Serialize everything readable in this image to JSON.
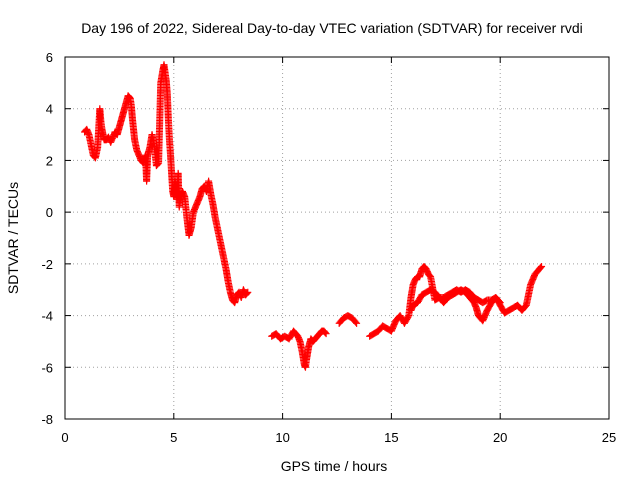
{
  "chart_data": {
    "type": "scatter",
    "title": "Day 196 of 2022, Sidereal Day-to-day VTEC variation (SDTVAR) for receiver rvdi",
    "xlabel": "GPS time / hours",
    "ylabel": "SDTVAR / TECUs",
    "xlim": [
      0,
      25
    ],
    "ylim": [
      -8,
      6
    ],
    "x_ticks": [
      0,
      5,
      10,
      15,
      20,
      25
    ],
    "y_ticks": [
      -8,
      -6,
      -4,
      -2,
      0,
      2,
      4,
      6
    ],
    "grid": true,
    "marker": "plus",
    "colors": {
      "series": "#ff0000",
      "grid": "#a0a0a0",
      "axes": "#000000"
    },
    "series": [
      {
        "segments": [
          {
            "x": [
              0.9,
              1.0,
              1.1,
              1.2,
              1.3,
              1.4,
              1.5,
              1.6,
              1.65,
              1.7,
              1.75,
              1.8,
              1.9,
              2.0,
              2.1,
              2.2,
              2.3,
              2.4,
              2.5,
              2.6,
              2.7,
              2.8,
              2.9,
              3.0,
              3.05,
              3.1,
              3.15,
              3.2,
              3.3,
              3.4,
              3.5,
              3.6,
              3.7,
              3.75,
              3.8,
              3.9,
              4.0,
              4.1,
              4.2,
              4.3,
              4.4,
              4.5,
              4.55,
              4.6,
              4.65,
              4.7,
              4.75,
              4.8,
              4.85,
              4.9,
              4.95,
              5.0,
              5.05,
              5.1,
              5.15,
              5.2,
              5.25,
              5.3,
              5.4,
              5.5,
              5.6,
              5.7,
              5.8,
              5.9,
              6.0,
              6.1,
              6.2,
              6.3,
              6.4,
              6.5,
              6.6,
              6.7,
              6.8,
              6.9,
              7.0,
              7.1,
              7.2,
              7.3,
              7.4,
              7.5,
              7.6,
              7.7,
              7.8,
              7.9,
              8.0,
              8.1,
              8.2,
              8.3,
              8.4
            ],
            "y": [
              3.1,
              3.2,
              3.0,
              2.6,
              2.2,
              2.1,
              2.5,
              4.0,
              3.5,
              3.2,
              3.0,
              2.8,
              2.8,
              2.9,
              2.7,
              2.9,
              3.1,
              3.0,
              3.3,
              3.6,
              3.9,
              4.2,
              4.5,
              4.4,
              4.1,
              3.6,
              3.2,
              2.8,
              2.4,
              2.2,
              2.0,
              1.9,
              2.2,
              1.2,
              2.2,
              2.5,
              3.0,
              2.6,
              1.8,
              1.9,
              5.0,
              5.5,
              5.7,
              5.4,
              5.1,
              4.6,
              3.6,
              2.8,
              2.2,
              1.5,
              0.8,
              0.6,
              1.2,
              1.0,
              0.5,
              1.5,
              0.2,
              0.5,
              0.8,
              0.6,
              -0.2,
              -0.9,
              -0.6,
              0.0,
              0.2,
              0.4,
              0.6,
              0.9,
              1.0,
              0.8,
              1.2,
              0.7,
              0.3,
              -0.2,
              -0.6,
              -1.0,
              -1.4,
              -1.8,
              -2.2,
              -2.7,
              -3.1,
              -3.4,
              -3.5,
              -3.2,
              -3.1,
              -3.3,
              -3.0,
              -3.2,
              -3.1
            ]
          },
          {
            "x": [
              9.5,
              9.7,
              9.9,
              10.1,
              10.3,
              10.5,
              10.6,
              10.7,
              10.8,
              10.9,
              11.0,
              11.05,
              11.1,
              11.2,
              11.3,
              11.4,
              11.5,
              11.6,
              11.7,
              11.8,
              11.9,
              12.0
            ],
            "y": [
              -4.8,
              -4.7,
              -4.9,
              -4.8,
              -4.9,
              -4.6,
              -4.7,
              -4.8,
              -5.0,
              -5.4,
              -5.9,
              -6.0,
              -5.7,
              -5.2,
              -4.9,
              -5.0,
              -4.9,
              -4.8,
              -4.7,
              -4.6,
              -4.6,
              -4.7
            ]
          },
          {
            "x": [
              12.6,
              12.8,
              13.0,
              13.2,
              13.4
            ],
            "y": [
              -4.3,
              -4.1,
              -4.0,
              -4.1,
              -4.3
            ]
          },
          {
            "x": [
              14.0,
              14.2,
              14.4,
              14.6,
              14.8,
              15.0,
              15.2,
              15.4,
              15.6,
              15.8,
              15.9,
              16.0,
              16.1,
              16.2,
              16.3,
              16.4,
              16.5,
              16.6,
              16.7,
              16.8,
              17.0,
              17.2,
              17.4,
              17.6,
              17.8,
              18.0,
              18.2,
              18.4,
              18.6,
              18.8,
              18.9,
              19.0,
              19.2,
              19.4,
              19.6,
              19.8,
              20.0,
              20.2,
              20.4,
              20.6,
              20.8,
              21.0,
              21.2,
              21.4,
              21.5,
              21.6,
              21.8,
              21.9
            ],
            "y": [
              -4.8,
              -4.7,
              -4.6,
              -4.4,
              -4.5,
              -4.6,
              -4.2,
              -4.0,
              -4.3,
              -4.0,
              -3.3,
              -2.8,
              -2.6,
              -2.5,
              -2.5,
              -2.2,
              -2.1,
              -2.2,
              -2.4,
              -2.5,
              -3.4,
              -3.3,
              -3.5,
              -3.3,
              -3.2,
              -3.1,
              -3.0,
              -3.1,
              -3.3,
              -3.5,
              -3.7,
              -4.0,
              -4.2,
              -3.8,
              -3.5,
              -3.3,
              -3.6,
              -3.9,
              -3.8,
              -3.7,
              -3.6,
              -3.8,
              -3.6,
              -2.8,
              -2.6,
              -2.4,
              -2.2,
              -2.1
            ]
          },
          {
            "x": [
              15.9,
              16.0,
              16.2,
              16.4,
              16.6,
              16.8,
              17.0,
              17.2,
              17.4,
              17.6,
              17.8,
              18.0,
              18.2,
              18.4,
              18.6,
              18.8,
              19.0,
              19.2,
              19.4,
              19.6,
              19.8,
              20.0
            ],
            "y": [
              -3.8,
              -3.6,
              -3.5,
              -3.2,
              -3.1,
              -3.0,
              -3.1,
              -3.3,
              -3.3,
              -3.2,
              -3.1,
              -3.0,
              -3.1,
              -3.0,
              -3.1,
              -3.3,
              -3.4,
              -3.5,
              -3.4,
              -3.4,
              -3.3,
              -3.5
            ]
          }
        ]
      }
    ]
  }
}
